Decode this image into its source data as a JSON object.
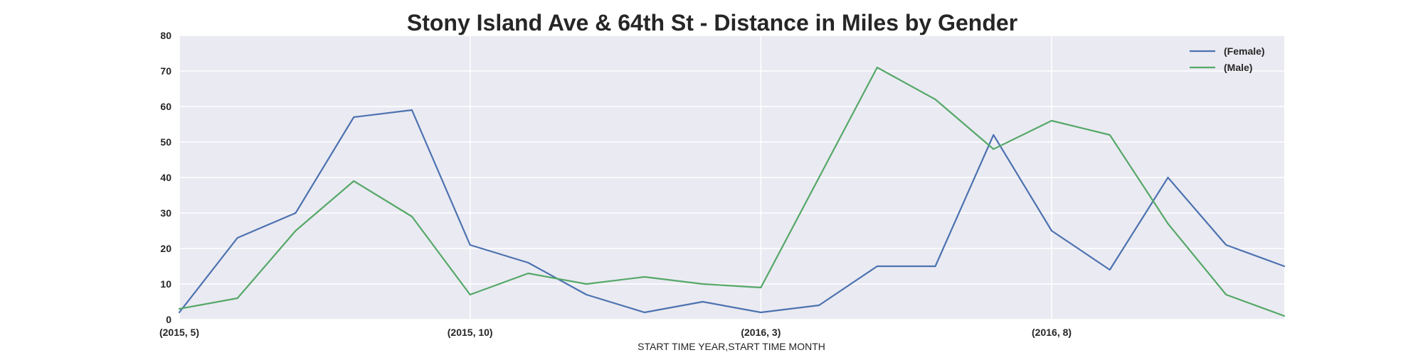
{
  "chart_data": {
    "type": "line",
    "title": "Stony Island Ave & 64th St - Distance in Miles by Gender",
    "xlabel": "START TIME YEAR,START TIME MONTH",
    "ylabel": "",
    "x": [
      "(2015, 5)",
      "(2015, 6)",
      "(2015, 7)",
      "(2015, 8)",
      "(2015, 9)",
      "(2015, 10)",
      "(2015, 11)",
      "(2015, 12)",
      "(2016, 1)",
      "(2016, 2)",
      "(2016, 3)",
      "(2016, 4)",
      "(2016, 5)",
      "(2016, 6)",
      "(2016, 7)",
      "(2016, 8)",
      "(2016, 9)",
      "(2016, 10)",
      "(2016, 11)",
      "(2016, 12)"
    ],
    "xticks": [
      "(2015, 5)",
      "(2015, 10)",
      "(2016, 3)",
      "(2016, 8)"
    ],
    "ylim": [
      0,
      80
    ],
    "yticks": [
      0,
      10,
      20,
      30,
      40,
      50,
      60,
      70,
      80
    ],
    "grid": true,
    "legend_position": "top-right",
    "series": [
      {
        "name": "(Female)",
        "color": "#4c72b0",
        "values": [
          2,
          23,
          30,
          57,
          59,
          21,
          16,
          7,
          2,
          5,
          2,
          4,
          15,
          15,
          52,
          25,
          14,
          40,
          21,
          15
        ]
      },
      {
        "name": "(Male)",
        "color": "#55a868",
        "values": [
          3,
          6,
          25,
          39,
          29,
          7,
          13,
          10,
          12,
          10,
          9,
          40,
          71,
          62,
          48,
          56,
          52,
          27,
          7,
          1
        ]
      }
    ],
    "background_color": "#eaeaf2",
    "grid_color": "#ffffff"
  }
}
